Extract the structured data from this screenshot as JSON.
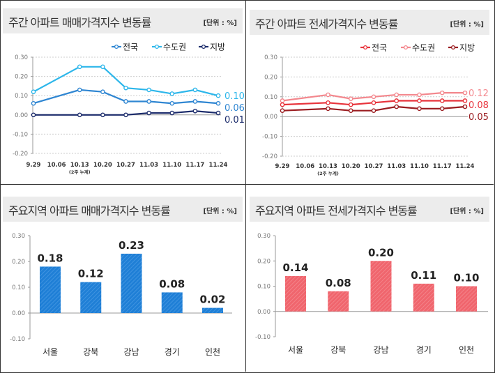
{
  "chart_data": [
    {
      "type": "line",
      "title": "주간 아파트 매매가격지수 변동률",
      "unit": "[단위 : %]",
      "categories": [
        "9.29",
        "10.06",
        "10.13",
        "10.20",
        "10.27",
        "11.03",
        "11.10",
        "11.17",
        "11.24"
      ],
      "category_note": {
        "category": "10.13",
        "text": "(2주 누계)"
      },
      "ylim": [
        -0.2,
        0.3
      ],
      "yticks": [
        "0.30",
        "0.20",
        "0.10",
        "0.00",
        "-0.10",
        "-0.20"
      ],
      "grid": true,
      "legend": "top-right",
      "series": [
        {
          "name": "전국",
          "color": "#2f86d2",
          "values": [
            0.06,
            null,
            0.13,
            0.12,
            0.07,
            0.07,
            0.06,
            0.07,
            0.06
          ],
          "end_label": "0.06"
        },
        {
          "name": "수도권",
          "color": "#2cb6ea",
          "values": [
            0.12,
            null,
            0.25,
            0.25,
            0.14,
            0.13,
            0.11,
            0.13,
            0.1
          ],
          "end_label": "0.10"
        },
        {
          "name": "지방",
          "color": "#1b2b6b",
          "values": [
            0.0,
            null,
            0.0,
            0.0,
            0.0,
            0.01,
            0.01,
            0.02,
            0.01
          ],
          "end_label": "0.01"
        }
      ]
    },
    {
      "type": "line",
      "title": "주간 아파트 전세가격지수 변동률",
      "unit": "[단위 : %]",
      "categories": [
        "9.29",
        "10.06",
        "10.13",
        "10.20",
        "10.27",
        "11.03",
        "11.10",
        "11.17",
        "11.24"
      ],
      "category_note": {
        "category": "10.13",
        "text": "(2주 누계)"
      },
      "ylim": [
        -0.2,
        0.3
      ],
      "yticks": [
        "0.30",
        "0.20",
        "0.10",
        "0.00",
        "-0.10",
        "-0.20"
      ],
      "grid": true,
      "legend": "top-right",
      "series": [
        {
          "name": "전국",
          "color": "#e8333b",
          "values": [
            0.06,
            null,
            0.07,
            0.06,
            0.07,
            0.08,
            0.08,
            0.08,
            0.08
          ],
          "end_label": "0.08"
        },
        {
          "name": "수도권",
          "color": "#f3878d",
          "values": [
            0.08,
            null,
            0.11,
            0.09,
            0.1,
            0.11,
            0.11,
            0.12,
            0.12
          ],
          "end_label": "0.12"
        },
        {
          "name": "지방",
          "color": "#9a1c20",
          "values": [
            0.03,
            null,
            0.04,
            0.03,
            0.03,
            0.05,
            0.04,
            0.04,
            0.05
          ],
          "end_label": "0.05"
        }
      ]
    },
    {
      "type": "bar",
      "title": "주요지역 아파트 매매가격지수 변동률",
      "unit": "[단위 : %]",
      "categories": [
        "서울",
        "강북",
        "강남",
        "경기",
        "인천"
      ],
      "values": [
        0.18,
        0.12,
        0.23,
        0.08,
        0.02
      ],
      "labels": [
        "0.18",
        "0.12",
        "0.23",
        "0.08",
        "0.02"
      ],
      "ylim": [
        -0.1,
        0.3
      ],
      "yticks": [
        "0.30",
        "0.20",
        "0.10",
        "0.00",
        "-0.10"
      ],
      "color": "#1f7fd6"
    },
    {
      "type": "bar",
      "title": "주요지역 아파트 전세가격지수 변동률",
      "unit": "[단위 : %]",
      "categories": [
        "서울",
        "강북",
        "강남",
        "경기",
        "인천"
      ],
      "values": [
        0.14,
        0.08,
        0.2,
        0.11,
        0.1
      ],
      "labels": [
        "0.14",
        "0.08",
        "0.20",
        "0.11",
        "0.10"
      ],
      "ylim": [
        -0.1,
        0.3
      ],
      "yticks": [
        "0.30",
        "0.20",
        "0.10",
        "0.00",
        "-0.10"
      ],
      "color": "#f0656d"
    }
  ]
}
